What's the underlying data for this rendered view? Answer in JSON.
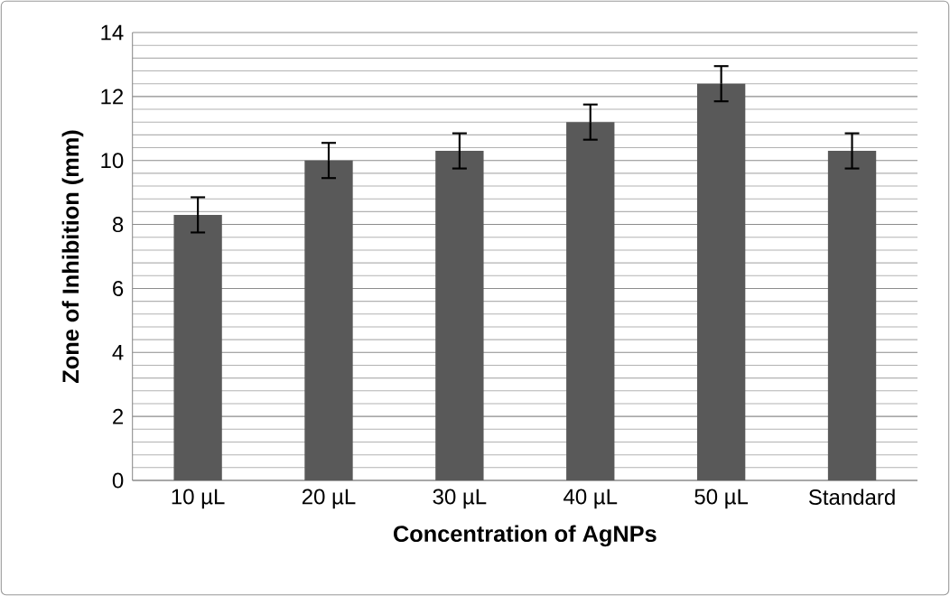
{
  "chart_data": {
    "type": "bar",
    "xlabel": "Concentration of AgNPs",
    "ylabel": "Zone of Inhibition (mm)",
    "categories": [
      "10 µL",
      "20 µL",
      "30 µL",
      "40 µL",
      "50 µL",
      "Standard"
    ],
    "values": [
      8.3,
      10.0,
      10.3,
      11.2,
      12.4,
      10.3
    ],
    "errors": [
      0.55,
      0.55,
      0.55,
      0.55,
      0.55,
      0.55
    ],
    "color": "#595959",
    "ylim": [
      0,
      14
    ],
    "yticks": [
      0,
      2,
      4,
      6,
      8,
      10,
      12,
      14
    ],
    "grid": true
  }
}
